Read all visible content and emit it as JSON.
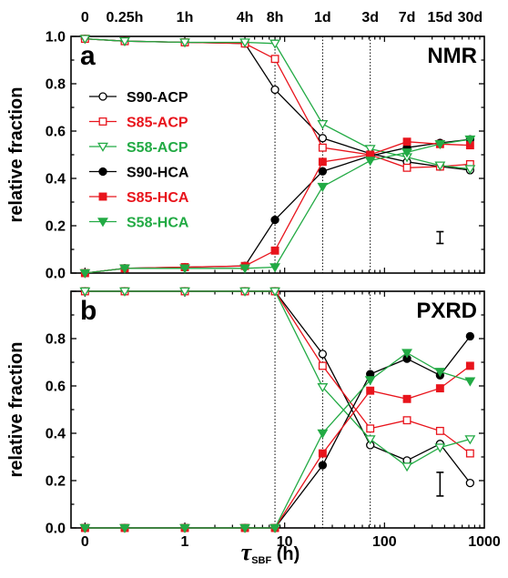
{
  "chart_data": [
    {
      "type": "line",
      "panel_label": "a",
      "title": "NMR",
      "ylabel": "relative fraction",
      "xscale": "log",
      "xlim": [
        0,
        1000
      ],
      "ylim": [
        0.0,
        1.0
      ],
      "y_ticks": [
        "0.0",
        "0.2",
        "0.4",
        "0.6",
        "0.8",
        "1.0"
      ],
      "x": [
        0.1,
        0.25,
        1,
        4,
        8,
        24,
        72,
        168,
        360,
        720
      ],
      "top_ticks": [
        {
          "x": 0.1,
          "label": "0"
        },
        {
          "x": 0.25,
          "label": "0.25h"
        },
        {
          "x": 1,
          "label": "1h"
        },
        {
          "x": 4,
          "label": "4h"
        },
        {
          "x": 8,
          "label": "8h"
        },
        {
          "x": 24,
          "label": "1d"
        },
        {
          "x": 72,
          "label": "3d"
        },
        {
          "x": 168,
          "label": "7d"
        },
        {
          "x": 360,
          "label": "15d"
        },
        {
          "x": 720,
          "label": "30d"
        }
      ],
      "vlines": [
        8,
        24,
        72
      ],
      "error_bar": {
        "x": 360,
        "y": 0.15,
        "half": 0.025
      },
      "legend_position": "center-left",
      "series": [
        {
          "name": "S90-ACP",
          "color": "#000000",
          "marker": "circle",
          "filled": false,
          "values": [
            0.99,
            0.98,
            0.975,
            0.97,
            0.775,
            0.57,
            0.505,
            0.47,
            0.45,
            0.435
          ]
        },
        {
          "name": "S85-ACP",
          "color": "#e8141c",
          "marker": "square",
          "filled": false,
          "values": [
            0.99,
            0.98,
            0.975,
            0.97,
            0.905,
            0.53,
            0.5,
            0.445,
            0.45,
            0.46
          ]
        },
        {
          "name": "S58-ACP",
          "color": "#22aa44",
          "marker": "triangle-down",
          "filled": false,
          "values": [
            0.99,
            0.98,
            0.975,
            0.975,
            0.97,
            0.63,
            0.525,
            0.49,
            0.455,
            0.44
          ]
        },
        {
          "name": "S90-HCA",
          "color": "#000000",
          "marker": "circle",
          "filled": true,
          "values": [
            0.0,
            0.02,
            0.025,
            0.03,
            0.225,
            0.43,
            0.495,
            0.53,
            0.55,
            0.565
          ]
        },
        {
          "name": "S85-HCA",
          "color": "#e8141c",
          "marker": "square",
          "filled": true,
          "values": [
            0.0,
            0.02,
            0.025,
            0.03,
            0.095,
            0.47,
            0.5,
            0.555,
            0.545,
            0.54
          ]
        },
        {
          "name": "S58-HCA",
          "color": "#22aa44",
          "marker": "triangle-down",
          "filled": true,
          "values": [
            0.0,
            0.02,
            0.02,
            0.02,
            0.025,
            0.365,
            0.475,
            0.51,
            0.545,
            0.565
          ]
        }
      ]
    },
    {
      "type": "line",
      "panel_label": "b",
      "title": "PXRD",
      "ylabel": "relative fraction",
      "xlabel_symbol": "τ",
      "xlabel_sub": "SBF",
      "xlabel_unit": " (h)",
      "xscale": "log",
      "xlim": [
        0,
        1000
      ],
      "ylim": [
        0.0,
        1.0
      ],
      "y_ticks": [
        "0.0",
        "0.2",
        "0.4",
        "0.6",
        "0.8"
      ],
      "bottom_ticks": [
        {
          "x": 0.1,
          "label": "0"
        },
        {
          "x": 1,
          "label": "1"
        },
        {
          "x": 10,
          "label": "10"
        },
        {
          "x": 100,
          "label": "100"
        },
        {
          "x": 1000,
          "label": "1000"
        }
      ],
      "x": [
        0.1,
        0.25,
        1,
        4,
        8,
        24,
        72,
        168,
        360,
        720
      ],
      "vlines": [
        8,
        24,
        72
      ],
      "error_bar": {
        "x": 360,
        "y": 0.185,
        "half": 0.05
      },
      "series": [
        {
          "name": "S90-ACP",
          "color": "#000000",
          "marker": "circle",
          "filled": false,
          "values": [
            1.0,
            1.0,
            1.0,
            1.0,
            1.0,
            0.735,
            0.35,
            0.285,
            0.355,
            0.19
          ]
        },
        {
          "name": "S85-ACP",
          "color": "#e8141c",
          "marker": "square",
          "filled": false,
          "values": [
            1.0,
            1.0,
            1.0,
            1.0,
            1.0,
            0.685,
            0.42,
            0.455,
            0.41,
            0.315
          ]
        },
        {
          "name": "S58-ACP",
          "color": "#22aa44",
          "marker": "triangle-down",
          "filled": false,
          "values": [
            1.0,
            1.0,
            1.0,
            1.0,
            1.0,
            0.595,
            0.375,
            0.26,
            0.34,
            0.375
          ]
        },
        {
          "name": "S90-HCA",
          "color": "#000000",
          "marker": "circle",
          "filled": true,
          "values": [
            0.0,
            0.0,
            0.0,
            0.0,
            0.0,
            0.265,
            0.65,
            0.715,
            0.645,
            0.81
          ]
        },
        {
          "name": "S85-HCA",
          "color": "#e8141c",
          "marker": "square",
          "filled": true,
          "values": [
            0.0,
            0.0,
            0.0,
            0.0,
            0.0,
            0.315,
            0.58,
            0.545,
            0.59,
            0.685
          ]
        },
        {
          "name": "S58-HCA",
          "color": "#22aa44",
          "marker": "triangle-down",
          "filled": true,
          "values": [
            0.0,
            0.0,
            0.0,
            0.0,
            0.0,
            0.4,
            0.625,
            0.74,
            0.66,
            0.62
          ]
        }
      ]
    }
  ]
}
